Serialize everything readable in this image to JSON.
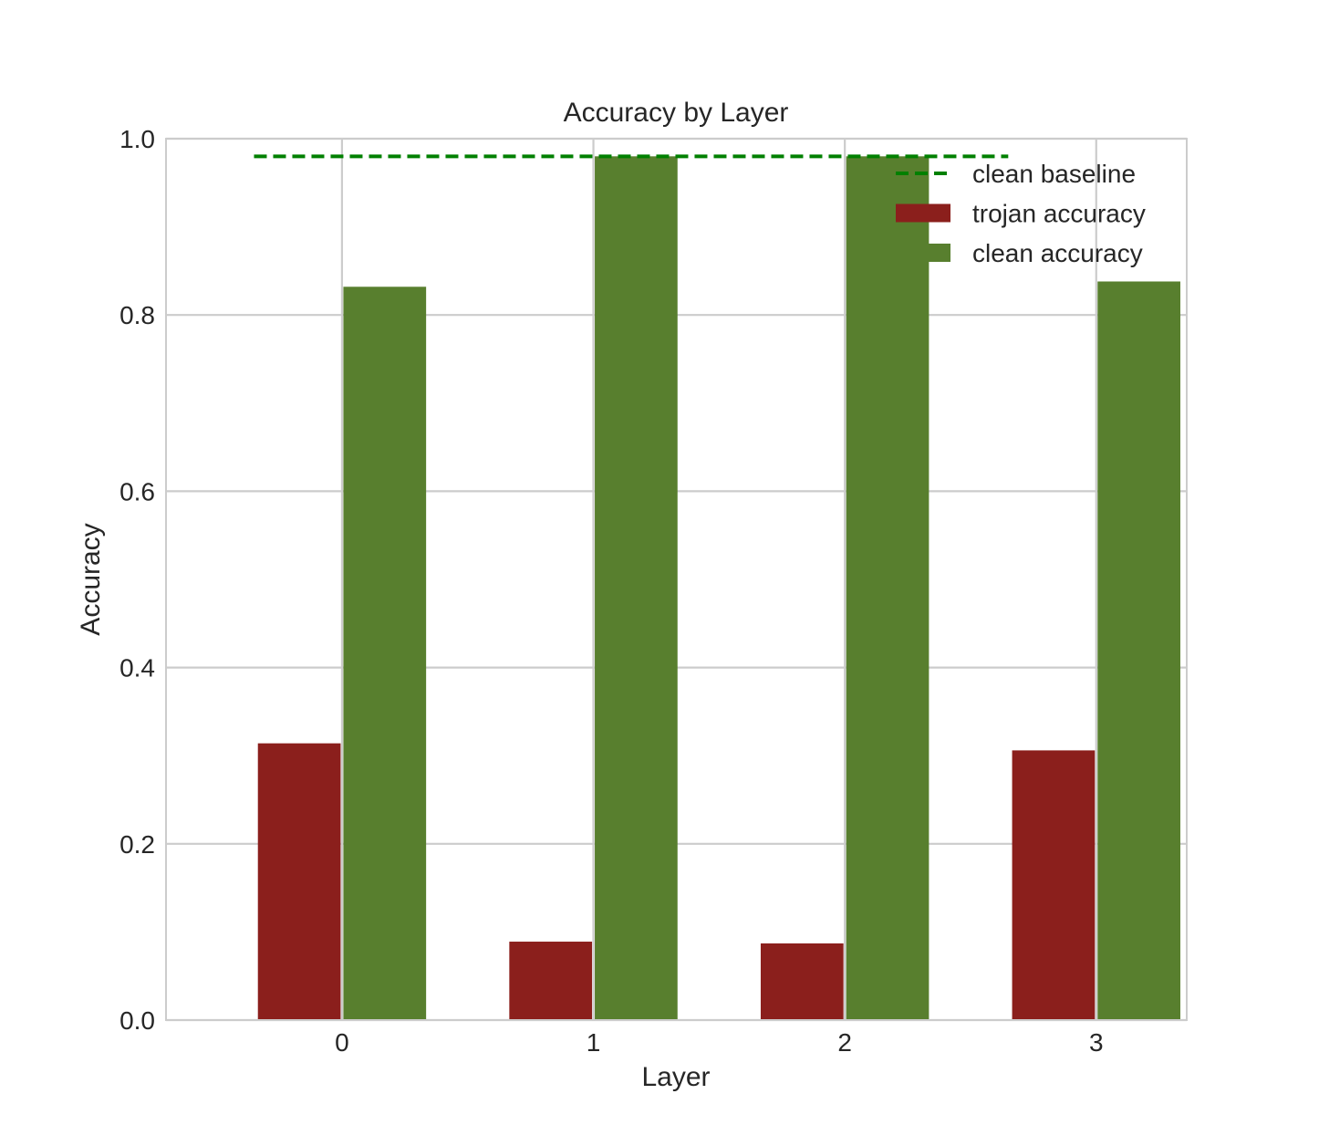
{
  "chart_data": {
    "type": "bar",
    "title": "Accuracy by Layer",
    "xlabel": "Layer",
    "ylabel": "Accuracy",
    "categories": [
      "0",
      "1",
      "2",
      "3"
    ],
    "ylim": [
      0,
      1.0
    ],
    "yticks": [
      "0.0",
      "0.2",
      "0.4",
      "0.6",
      "0.8",
      "1.0"
    ],
    "grid": true,
    "legend_position": "top-right",
    "series": [
      {
        "name": "trojan accuracy",
        "color": "#8b1f1c",
        "values": [
          0.314,
          0.089,
          0.087,
          0.306
        ]
      },
      {
        "name": "clean accuracy",
        "color": "#587f2e",
        "values": [
          0.832,
          0.98,
          0.98,
          0.838
        ]
      }
    ],
    "reference_lines": [
      {
        "name": "clean baseline",
        "value": 0.98,
        "color": "#008000",
        "style": "dashed"
      }
    ]
  }
}
